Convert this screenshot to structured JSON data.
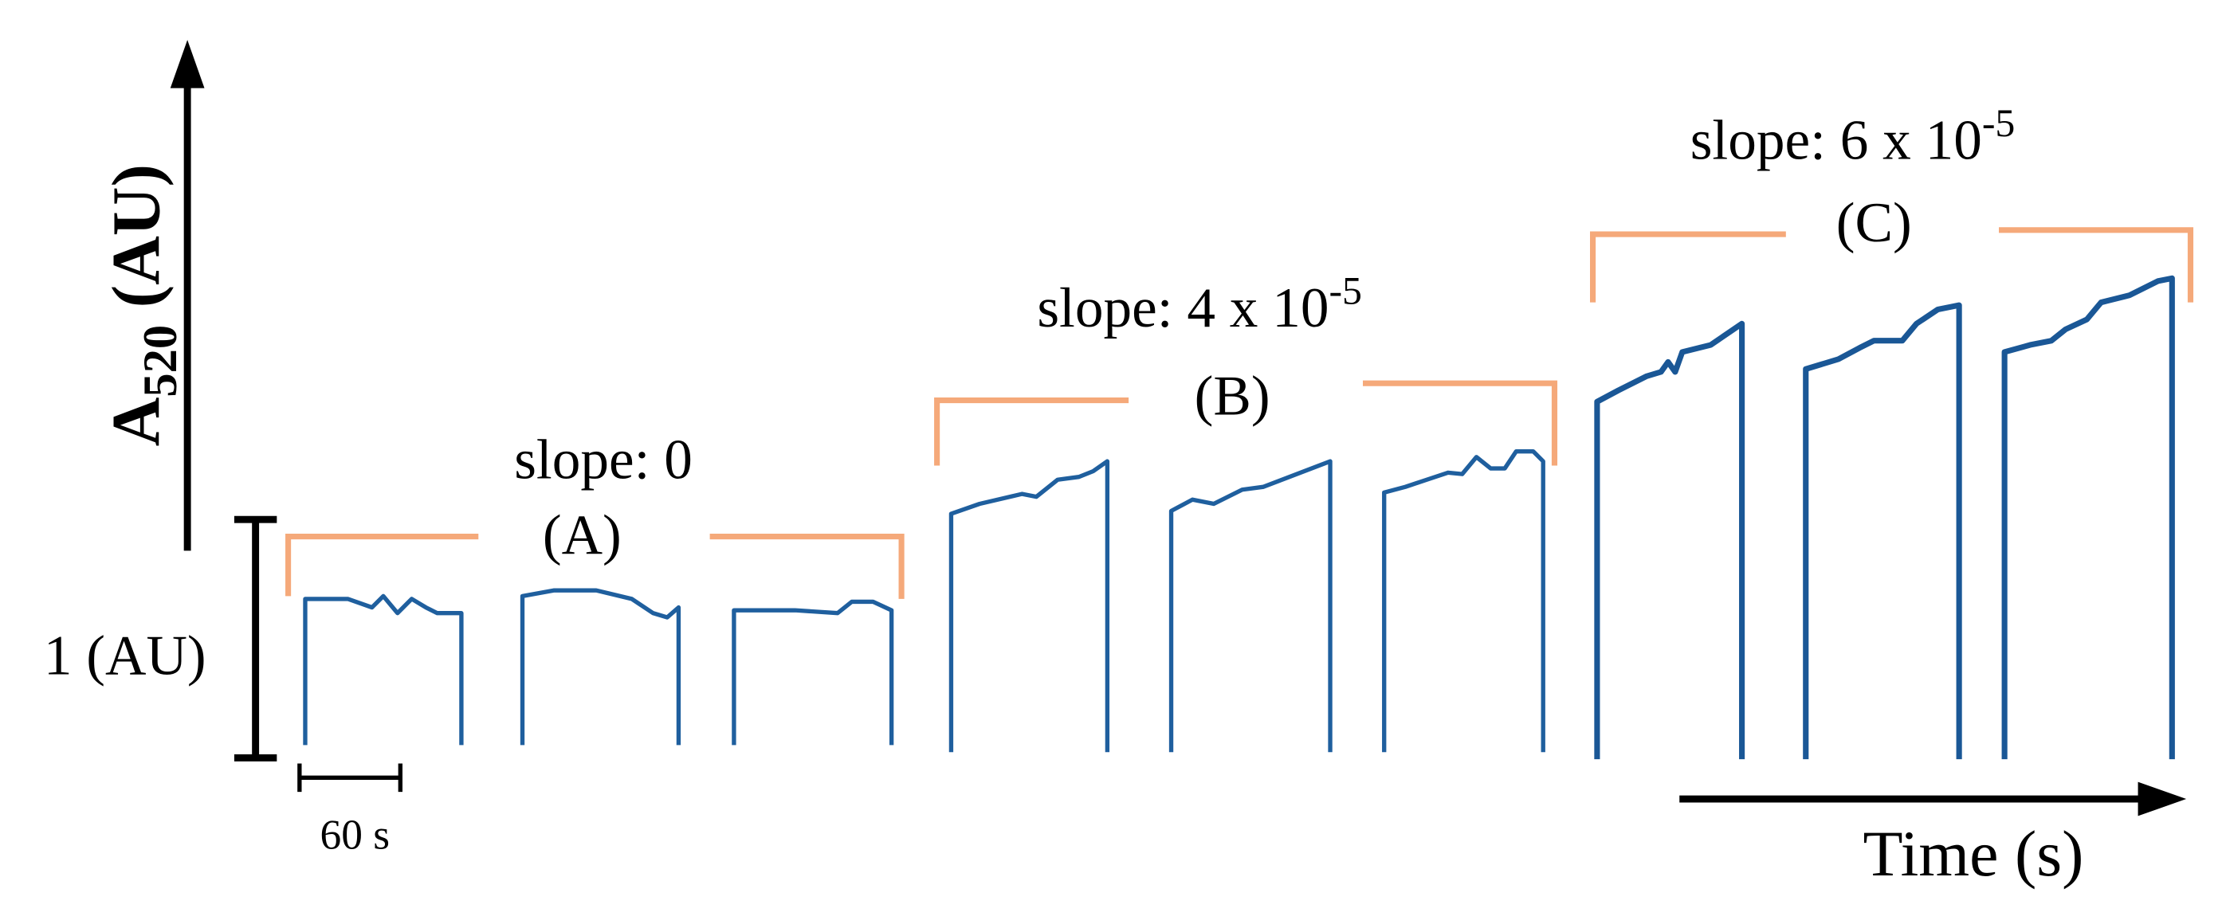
{
  "y_axis": {
    "label": {
      "base": "A",
      "subscript": "520",
      "unit": " (AU)"
    }
  },
  "scale_bar": {
    "vertical": "1 (AU)",
    "horizontal": "60 s"
  },
  "x_axis": {
    "label": "Time (s)"
  },
  "groups": [
    {
      "slope": {
        "text": "slope: 0"
      },
      "label": "(A)"
    },
    {
      "slope": {
        "text": "slope: 4 x 10",
        "exponent": "-5"
      },
      "label": "(B)"
    },
    {
      "slope": {
        "text": "slope: 6 x 10",
        "exponent": "-5"
      },
      "label": "(C)"
    }
  ]
}
